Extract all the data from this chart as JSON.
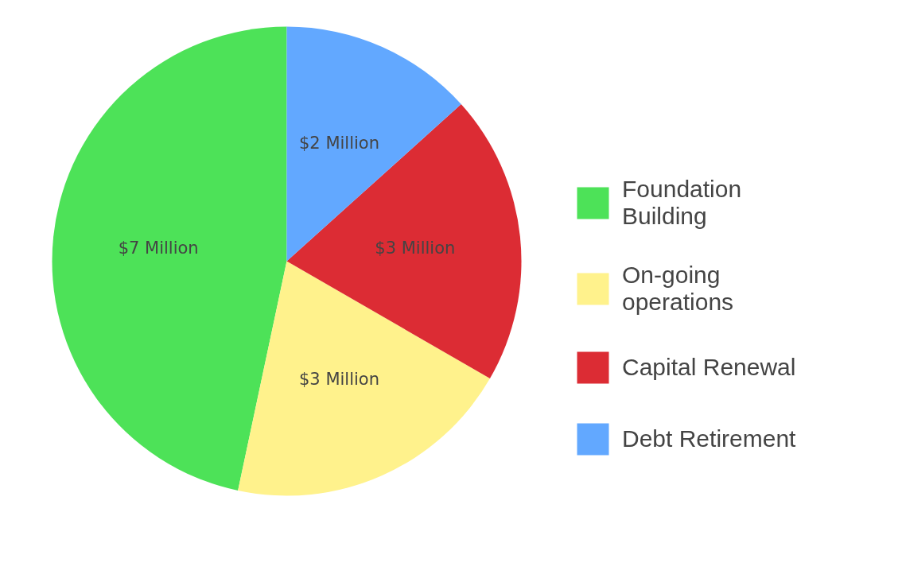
{
  "chart_data": {
    "type": "pie",
    "categories": [
      "Foundation Building",
      "On-going operations",
      "Capital Renewal",
      "Debt Retirement"
    ],
    "values": [
      7,
      3,
      3,
      2
    ],
    "colors": [
      "#4de258",
      "#fff28c",
      "#dc2c34",
      "#62a8ff"
    ],
    "value_labels": [
      "$7 Million",
      "$3 Million",
      "$3 Million",
      "$2 Million"
    ],
    "legend": "right"
  }
}
